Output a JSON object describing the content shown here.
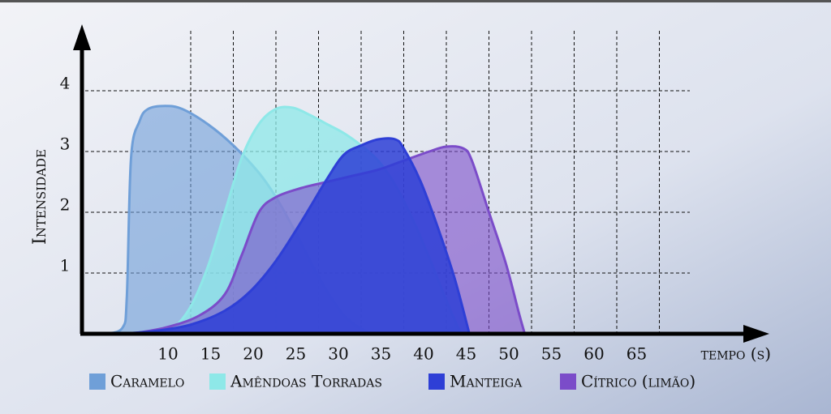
{
  "chart_data": {
    "type": "area",
    "y_label": "Intensidade",
    "x_label": "tempo (s)",
    "xlim": [
      -3,
      77
    ],
    "ylim": [
      0,
      5
    ],
    "xticks": [
      10,
      15,
      20,
      25,
      30,
      35,
      40,
      45,
      50,
      55,
      60,
      65
    ],
    "yticks": [
      1,
      2,
      3,
      4
    ],
    "grid": true,
    "series": [
      {
        "name": "Caramelo",
        "color": "#6f9fd8",
        "opacity": 0.6,
        "x": [
          0,
          2,
          2.5,
          3,
          4,
          5,
          7,
          9,
          12,
          15,
          18,
          20,
          22,
          24,
          26,
          28,
          30,
          31.5
        ],
        "values": [
          0,
          0.1,
          0.6,
          2.9,
          3.5,
          3.7,
          3.75,
          3.7,
          3.45,
          3.1,
          2.65,
          2.25,
          1.75,
          1.2,
          0.7,
          0.3,
          0.08,
          0
        ]
      },
      {
        "name": "Amêndoas Torradas",
        "color": "#8ee8e8",
        "opacity": 0.75,
        "x": [
          6,
          8,
          10,
          12,
          14,
          16,
          18,
          20,
          22,
          24,
          26,
          28,
          30,
          32,
          34,
          36,
          38,
          40,
          41.7
        ],
        "values": [
          0,
          0.1,
          0.45,
          1.1,
          2.0,
          2.9,
          3.45,
          3.7,
          3.72,
          3.6,
          3.45,
          3.3,
          3.1,
          2.85,
          2.45,
          1.9,
          1.25,
          0.55,
          0
        ]
      },
      {
        "name": "Manteiga",
        "color": "#2e3fd6",
        "opacity": 0.85,
        "x": [
          2,
          6,
          10,
          14,
          17,
          20,
          23,
          26,
          28,
          30,
          32,
          34,
          35,
          37,
          39,
          41,
          42.7
        ],
        "values": [
          0,
          0.05,
          0.15,
          0.38,
          0.7,
          1.2,
          1.85,
          2.55,
          2.95,
          3.1,
          3.2,
          3.2,
          3.05,
          2.5,
          1.75,
          0.9,
          0
        ]
      },
      {
        "name": "Cítrico (limão)",
        "color": "#7b4cc9",
        "opacity": 0.6,
        "x": [
          3,
          7,
          11,
          14,
          16,
          18,
          20,
          23,
          26,
          29,
          32,
          35,
          38,
          40,
          42,
          43,
          45,
          47,
          48.5,
          49.2
        ],
        "values": [
          0,
          0.1,
          0.3,
          0.65,
          1.3,
          2.0,
          2.25,
          2.4,
          2.5,
          2.6,
          2.7,
          2.85,
          3.0,
          3.08,
          3.05,
          2.85,
          2.0,
          1.15,
          0.35,
          0
        ]
      }
    ],
    "draw_order": [
      0,
      1,
      3,
      2
    ]
  }
}
